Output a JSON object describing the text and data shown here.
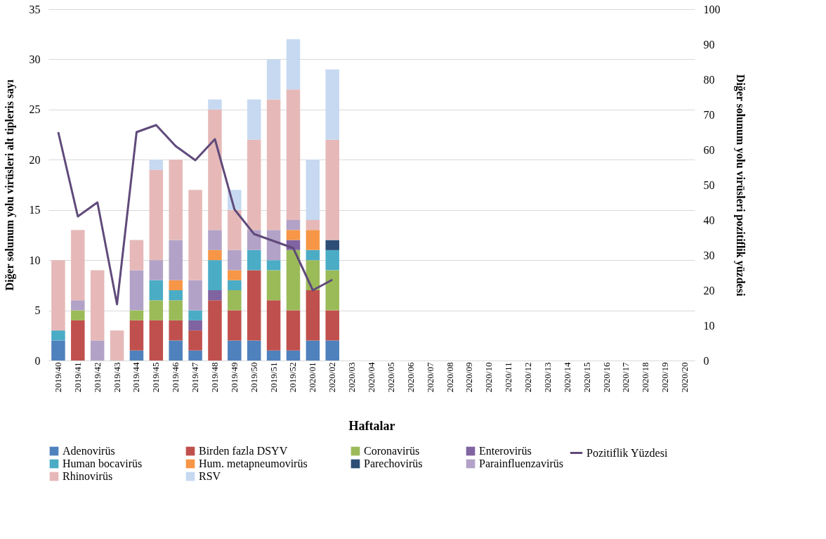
{
  "chart_data": {
    "type": "bar",
    "stacked": true,
    "xlabel": "Haftalar",
    "ylabel": "Diğer solunum yolu virüsleri alt tipleris sayı",
    "y2label": "Diğer solunum yolu virüsleri pozitiflik yüzdesi",
    "categories": [
      "2019/40",
      "2019/41",
      "2019/42",
      "2019/43",
      "2019/44",
      "2019/45",
      "2019/46",
      "2019/47",
      "2019/48",
      "2019/49",
      "2019/50",
      "2019/51",
      "2019/52",
      "2020/01",
      "2020/02",
      "2020/03",
      "2020/04",
      "2020/05",
      "2020/06",
      "2020/07",
      "2020/08",
      "2020/09",
      "2020/10",
      "2020/11",
      "2020/12",
      "2020/13",
      "2020/14",
      "2020/15",
      "2020/16",
      "2020/17",
      "2020/18",
      "2020/19",
      "2020/20"
    ],
    "ylim": [
      0,
      35
    ],
    "yticks": [
      0,
      5,
      10,
      15,
      20,
      25,
      30,
      35
    ],
    "y2lim": [
      0,
      100
    ],
    "y2ticks": [
      0,
      10,
      20,
      30,
      40,
      50,
      60,
      70,
      80,
      90,
      100
    ],
    "grid": "y",
    "legend": "bottom",
    "series": [
      {
        "name": "Adenovirüs",
        "color": "#4f81bd",
        "values": [
          2,
          0,
          0,
          0,
          1,
          0,
          2,
          1,
          0,
          2,
          2,
          1,
          1,
          2,
          2,
          null,
          null,
          null,
          null,
          null,
          null,
          null,
          null,
          null,
          null,
          null,
          null,
          null,
          null,
          null,
          null,
          null,
          null
        ]
      },
      {
        "name": "Birden fazla DSYV",
        "color": "#c0504d",
        "values": [
          0,
          4,
          0,
          0,
          3,
          4,
          2,
          2,
          6,
          3,
          7,
          5,
          4,
          5,
          3,
          null,
          null,
          null,
          null,
          null,
          null,
          null,
          null,
          null,
          null,
          null,
          null,
          null,
          null,
          null,
          null,
          null,
          null
        ]
      },
      {
        "name": "Coronavirüs",
        "color": "#9bbb59",
        "values": [
          0,
          1,
          0,
          0,
          1,
          2,
          2,
          0,
          0,
          2,
          0,
          3,
          6,
          3,
          4,
          null,
          null,
          null,
          null,
          null,
          null,
          null,
          null,
          null,
          null,
          null,
          null,
          null,
          null,
          null,
          null,
          null,
          null
        ]
      },
      {
        "name": "Enterovirüs",
        "color": "#8064a2",
        "values": [
          0,
          0,
          0,
          0,
          0,
          0,
          0,
          1,
          1,
          0,
          0,
          0,
          1,
          0,
          0,
          null,
          null,
          null,
          null,
          null,
          null,
          null,
          null,
          null,
          null,
          null,
          null,
          null,
          null,
          null,
          null,
          null,
          null
        ]
      },
      {
        "name": "Human bocavirüs",
        "color": "#4bacc6",
        "values": [
          1,
          0,
          0,
          0,
          0,
          2,
          1,
          1,
          3,
          1,
          2,
          1,
          0,
          1,
          2,
          null,
          null,
          null,
          null,
          null,
          null,
          null,
          null,
          null,
          null,
          null,
          null,
          null,
          null,
          null,
          null,
          null,
          null
        ]
      },
      {
        "name": "Hum. metapneumovirüs",
        "color": "#f79646",
        "values": [
          0,
          0,
          0,
          0,
          0,
          0,
          1,
          0,
          1,
          1,
          0,
          0,
          1,
          2,
          0,
          null,
          null,
          null,
          null,
          null,
          null,
          null,
          null,
          null,
          null,
          null,
          null,
          null,
          null,
          null,
          null,
          null,
          null
        ]
      },
      {
        "name": "Parechovirüs",
        "color": "#2c4d75",
        "values": [
          0,
          0,
          0,
          0,
          0,
          0,
          0,
          0,
          0,
          0,
          0,
          0,
          0,
          0,
          1,
          null,
          null,
          null,
          null,
          null,
          null,
          null,
          null,
          null,
          null,
          null,
          null,
          null,
          null,
          null,
          null,
          null,
          null
        ]
      },
      {
        "name": "Parainfluenzavirüs",
        "color": "#b3a2c7",
        "values": [
          0,
          1,
          2,
          0,
          4,
          2,
          4,
          3,
          2,
          2,
          2,
          3,
          1,
          0,
          0,
          null,
          null,
          null,
          null,
          null,
          null,
          null,
          null,
          null,
          null,
          null,
          null,
          null,
          null,
          null,
          null,
          null,
          null
        ]
      },
      {
        "name": "Rhinovirüs",
        "color": "#e6b9b8",
        "values": [
          7,
          7,
          7,
          3,
          3,
          9,
          8,
          9,
          12,
          4,
          9,
          13,
          13,
          1,
          10,
          null,
          null,
          null,
          null,
          null,
          null,
          null,
          null,
          null,
          null,
          null,
          null,
          null,
          null,
          null,
          null,
          null,
          null
        ]
      },
      {
        "name": "RSV",
        "color": "#c6d9f1",
        "values": [
          0,
          0,
          0,
          0,
          0,
          1,
          0,
          0,
          1,
          2,
          4,
          4,
          5,
          6,
          7,
          null,
          null,
          null,
          null,
          null,
          null,
          null,
          null,
          null,
          null,
          null,
          null,
          null,
          null,
          null,
          null,
          null,
          null
        ]
      },
      {
        "name": "Pozitiflik Yüzdesi",
        "color": "#604a7b",
        "type": "line",
        "axis": "y2",
        "values": [
          65,
          41,
          45,
          16,
          65,
          67,
          61,
          57,
          63,
          43,
          36,
          34,
          32,
          20,
          23,
          null,
          null,
          null,
          null,
          null,
          null,
          null,
          null,
          null,
          null,
          null,
          null,
          null,
          null,
          null,
          null,
          null,
          null
        ]
      }
    ]
  }
}
